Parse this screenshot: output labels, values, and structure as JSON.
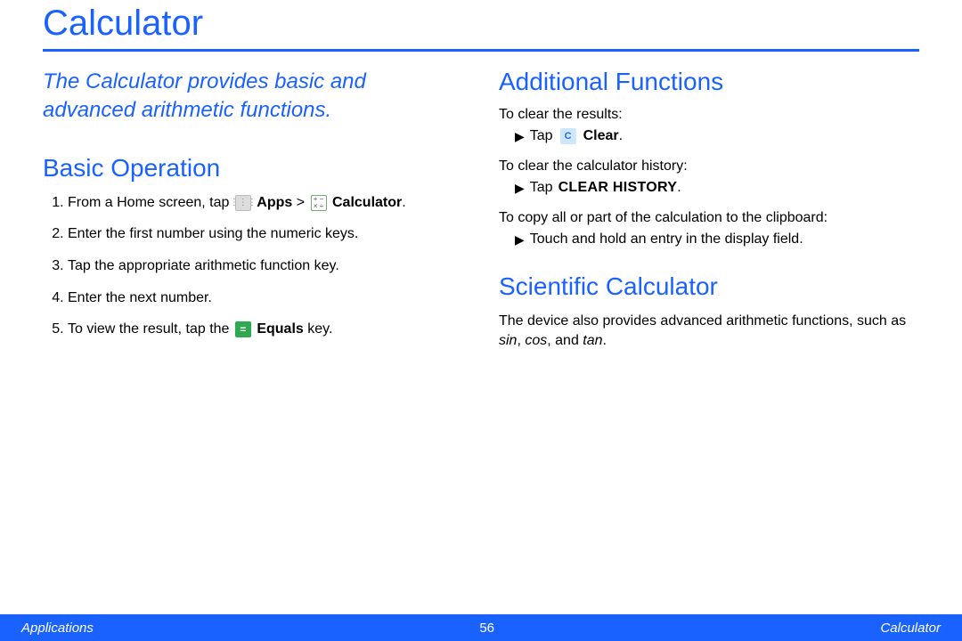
{
  "title": "Calculator",
  "intro": "The Calculator provides basic and advanced arithmetic functions.",
  "colors": {
    "accent": "#1a62ff",
    "footer_bg": "#1a62ff",
    "footer_text": "#ffffff"
  },
  "left": {
    "heading": "Basic Operation",
    "steps": {
      "s1_a": "From a Home screen, tap ",
      "s1_apps": "Apps",
      "s1_gt": " > ",
      "s1_calc": "Calculator",
      "s1_end": ".",
      "s2": "Enter the first number using the numeric keys.",
      "s3": "Tap the appropriate arithmetic function key.",
      "s4": "Enter the next number.",
      "s5_a": "To view the result, tap the ",
      "s5_equals": "Equals",
      "s5_b": " key."
    }
  },
  "right": {
    "add_heading": "Additional Functions",
    "p_clear_results": "To clear the results:",
    "b_clear_tap": "Tap",
    "b_clear_label": "Clear",
    "p_clear_history": "To clear the calculator history:",
    "b_history_tap": "Tap",
    "b_history_label": "CLEAR HISTORY",
    "p_copy": "To copy all or part of the calculation to the clipboard:",
    "b_copy": "Touch and hold an entry in the display field.",
    "sci_heading": "Scientific Calculator",
    "sci_a": "The device also provides advanced arithmetic functions, such as ",
    "sci_sin": "sin",
    "sci_c1": ", ",
    "sci_cos": "cos",
    "sci_c2": ", and ",
    "sci_tan": "tan",
    "sci_end": "."
  },
  "footer": {
    "left": "Applications",
    "page": "56",
    "right": "Calculator"
  },
  "icons": {
    "apps_glyph": "⋮⋮⋮",
    "calc_top": "+ −",
    "calc_bot": "× ÷",
    "clear_glyph": "C",
    "equals_glyph": "="
  }
}
